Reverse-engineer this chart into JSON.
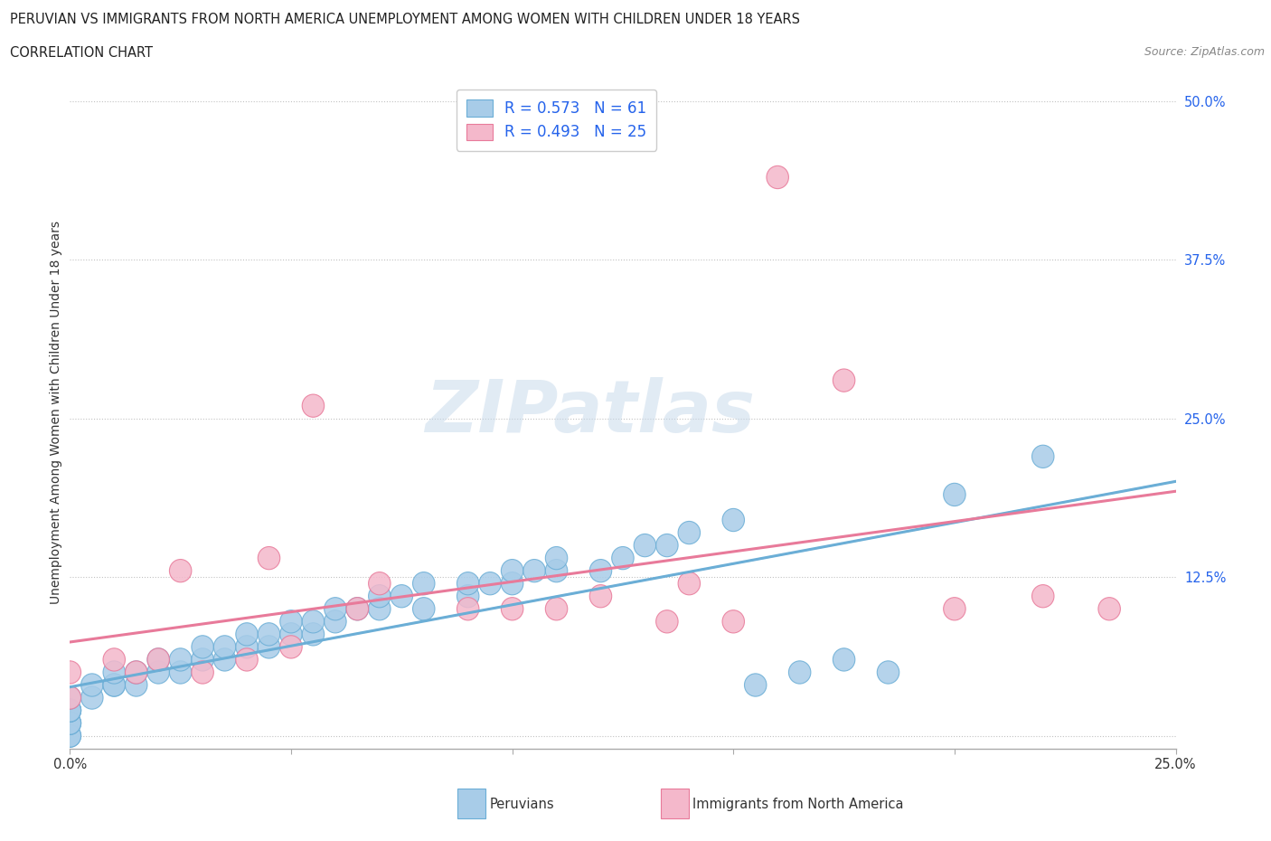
{
  "title_line1": "PERUVIAN VS IMMIGRANTS FROM NORTH AMERICA UNEMPLOYMENT AMONG WOMEN WITH CHILDREN UNDER 18 YEARS",
  "title_line2": "CORRELATION CHART",
  "source": "Source: ZipAtlas.com",
  "ylabel": "Unemployment Among Women with Children Under 18 years",
  "xlim": [
    0.0,
    0.25
  ],
  "ylim": [
    -0.01,
    0.52
  ],
  "yticks": [
    0.0,
    0.125,
    0.25,
    0.375,
    0.5
  ],
  "ytick_labels": [
    "",
    "12.5%",
    "25.0%",
    "37.5%",
    "50.0%"
  ],
  "peruvian_color": "#6baed6",
  "peruvian_color_fill": "#a8cce8",
  "immigrant_color": "#e87a9a",
  "immigrant_color_fill": "#f4b8cb",
  "peruvian_R": 0.573,
  "peruvian_N": 61,
  "immigrant_R": 0.493,
  "immigrant_N": 25,
  "legend_text_color": "#2563eb",
  "watermark": "ZIPatlas",
  "background_color": "#ffffff",
  "grid_color": "#bbbbbb",
  "peruvian_scatter_x": [
    0.0,
    0.0,
    0.0,
    0.0,
    0.0,
    0.0,
    0.0,
    0.0,
    0.0,
    0.0,
    0.005,
    0.005,
    0.01,
    0.01,
    0.01,
    0.015,
    0.015,
    0.02,
    0.02,
    0.025,
    0.025,
    0.03,
    0.03,
    0.035,
    0.035,
    0.04,
    0.04,
    0.045,
    0.045,
    0.05,
    0.05,
    0.055,
    0.055,
    0.06,
    0.06,
    0.065,
    0.07,
    0.07,
    0.075,
    0.08,
    0.08,
    0.09,
    0.09,
    0.095,
    0.1,
    0.1,
    0.105,
    0.11,
    0.11,
    0.12,
    0.125,
    0.13,
    0.135,
    0.14,
    0.15,
    0.155,
    0.165,
    0.175,
    0.185,
    0.2,
    0.22
  ],
  "peruvian_scatter_y": [
    0.0,
    0.0,
    0.01,
    0.01,
    0.01,
    0.02,
    0.02,
    0.02,
    0.02,
    0.03,
    0.03,
    0.04,
    0.04,
    0.04,
    0.05,
    0.04,
    0.05,
    0.05,
    0.06,
    0.05,
    0.06,
    0.06,
    0.07,
    0.06,
    0.07,
    0.07,
    0.08,
    0.07,
    0.08,
    0.08,
    0.09,
    0.08,
    0.09,
    0.09,
    0.1,
    0.1,
    0.1,
    0.11,
    0.11,
    0.1,
    0.12,
    0.11,
    0.12,
    0.12,
    0.12,
    0.13,
    0.13,
    0.13,
    0.14,
    0.13,
    0.14,
    0.15,
    0.15,
    0.16,
    0.17,
    0.04,
    0.05,
    0.06,
    0.05,
    0.19,
    0.22
  ],
  "immigrant_scatter_x": [
    0.0,
    0.0,
    0.01,
    0.015,
    0.02,
    0.025,
    0.03,
    0.04,
    0.045,
    0.05,
    0.055,
    0.065,
    0.07,
    0.09,
    0.1,
    0.11,
    0.12,
    0.135,
    0.14,
    0.15,
    0.16,
    0.175,
    0.2,
    0.22,
    0.235
  ],
  "immigrant_scatter_y": [
    0.03,
    0.05,
    0.06,
    0.05,
    0.06,
    0.13,
    0.05,
    0.06,
    0.14,
    0.07,
    0.26,
    0.1,
    0.12,
    0.1,
    0.1,
    0.1,
    0.11,
    0.09,
    0.12,
    0.09,
    0.44,
    0.28,
    0.1,
    0.11,
    0.1
  ]
}
